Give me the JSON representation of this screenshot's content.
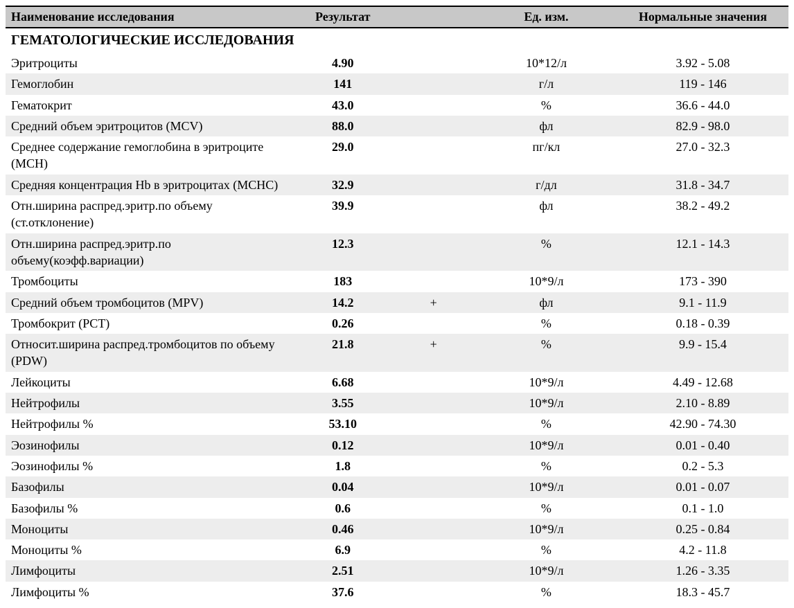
{
  "table": {
    "header": {
      "name": "Наименование исследования",
      "result": "Результат",
      "unit": "Ед. изм.",
      "reference": "Нормальные значения"
    },
    "section_title": "ГЕМАТОЛОГИЧЕСКИЕ ИССЛЕДОВАНИЯ",
    "styling": {
      "header_bg": "#c8c8c8",
      "row_alt_bg": "#ededed",
      "row_bg": "#ffffff",
      "border_color": "#000000",
      "text_color": "#000000",
      "font_family": "Times New Roman",
      "base_font_size_pt": 14,
      "section_font_size_pt": 15,
      "column_widths_percent": [
        38,
        12,
        10,
        18,
        22
      ],
      "column_alignment": [
        "left",
        "center",
        "center",
        "center",
        "center"
      ]
    },
    "rows": [
      {
        "name": "Эритроциты",
        "result": "4.90",
        "flag": "",
        "unit": "10*12/л",
        "ref": "3.92 - 5.08"
      },
      {
        "name": "Гемоглобин",
        "result": "141",
        "flag": "",
        "unit": "г/л",
        "ref": "119 - 146"
      },
      {
        "name": "Гематокрит",
        "result": "43.0",
        "flag": "",
        "unit": "%",
        "ref": "36.6 - 44.0"
      },
      {
        "name": "Средний объем эритроцитов (MCV)",
        "result": "88.0",
        "flag": "",
        "unit": "фл",
        "ref": "82.9 - 98.0"
      },
      {
        "name": "Среднее содержание гемоглобина в эритроците (MCH)",
        "result": "29.0",
        "flag": "",
        "unit": "пг/кл",
        "ref": "27.0 - 32.3"
      },
      {
        "name": "Средняя концентрация Hb в эритроцитах (MCHC)",
        "result": "32.9",
        "flag": "",
        "unit": "г/дл",
        "ref": "31.8 - 34.7"
      },
      {
        "name": "Отн.ширина распред.эритр.по объему (ст.отклонение)",
        "result": "39.9",
        "flag": "",
        "unit": "фл",
        "ref": "38.2 - 49.2"
      },
      {
        "name": "Отн.ширина распред.эритр.по объему(коэфф.вариации)",
        "result": "12.3",
        "flag": "",
        "unit": "%",
        "ref": "12.1 - 14.3"
      },
      {
        "name": "Тромбоциты",
        "result": "183",
        "flag": "",
        "unit": "10*9/л",
        "ref": "173 - 390"
      },
      {
        "name": "Средний объем тромбоцитов (MPV)",
        "result": "14.2",
        "flag": "+",
        "unit": "фл",
        "ref": "9.1 - 11.9"
      },
      {
        "name": "Тромбокрит (PCT)",
        "result": "0.26",
        "flag": "",
        "unit": "%",
        "ref": "0.18 - 0.39"
      },
      {
        "name": "Относит.ширина распред.тромбоцитов по объему (PDW)",
        "result": "21.8",
        "flag": "+",
        "unit": "%",
        "ref": "9.9 - 15.4"
      },
      {
        "name": "Лейкоциты",
        "result": "6.68",
        "flag": "",
        "unit": "10*9/л",
        "ref": "4.49 - 12.68"
      },
      {
        "name": "Нейтрофилы",
        "result": "3.55",
        "flag": "",
        "unit": "10*9/л",
        "ref": "2.10 - 8.89"
      },
      {
        "name": "Нейтрофилы %",
        "result": "53.10",
        "flag": "",
        "unit": "%",
        "ref": "42.90 - 74.30"
      },
      {
        "name": "Эозинофилы",
        "result": "0.12",
        "flag": "",
        "unit": "10*9/л",
        "ref": "0.01 - 0.40"
      },
      {
        "name": "Эозинофилы %",
        "result": "1.8",
        "flag": "",
        "unit": "%",
        "ref": "0.2 - 5.3"
      },
      {
        "name": "Базофилы",
        "result": "0.04",
        "flag": "",
        "unit": "10*9/л",
        "ref": "0.01 - 0.07"
      },
      {
        "name": "Базофилы %",
        "result": "0.6",
        "flag": "",
        "unit": "%",
        "ref": "0.1 - 1.0"
      },
      {
        "name": "Моноциты",
        "result": "0.46",
        "flag": "",
        "unit": "10*9/л",
        "ref": "0.25 - 0.84"
      },
      {
        "name": "Моноциты %",
        "result": "6.9",
        "flag": "",
        "unit": "%",
        "ref": "4.2 - 11.8"
      },
      {
        "name": "Лимфоциты",
        "result": "2.51",
        "flag": "",
        "unit": "10*9/л",
        "ref": "1.26 - 3.35"
      },
      {
        "name": "Лимфоциты %",
        "result": "37.6",
        "flag": "",
        "unit": "%",
        "ref": "18.3 - 45.7"
      }
    ]
  }
}
